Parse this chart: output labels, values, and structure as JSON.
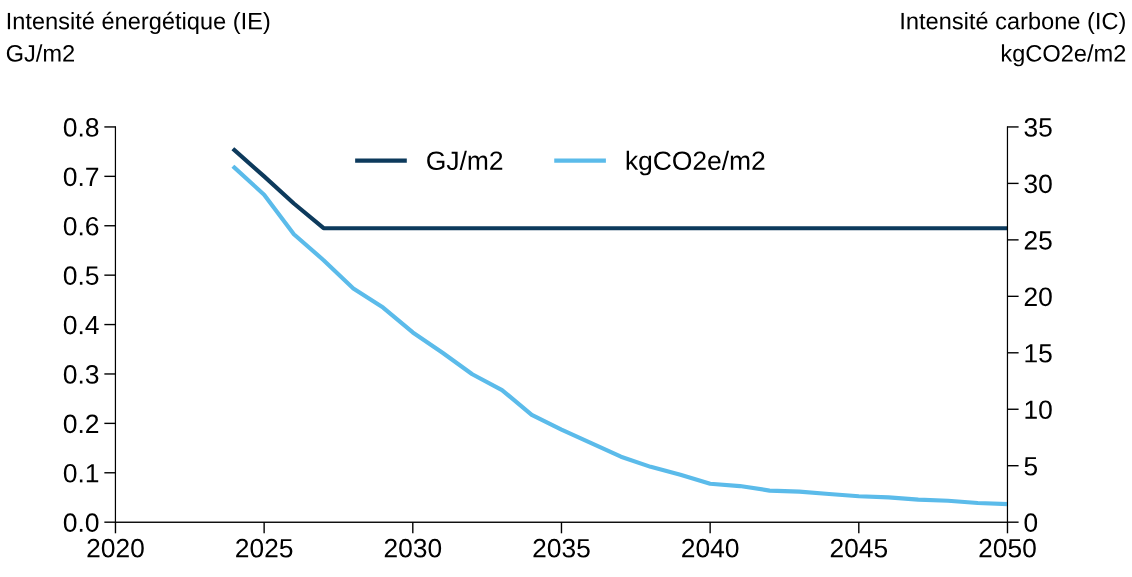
{
  "chart_data": {
    "type": "line",
    "ylabel": "Intensité énergétique (IE)\nGJ/m2",
    "y2label": "Intensité carbone (IC)\nkgCO2e/m2",
    "x": [
      2024,
      2025,
      2026,
      2027,
      2028,
      2029,
      2030,
      2031,
      2032,
      2033,
      2034,
      2035,
      2036,
      2037,
      2038,
      2039,
      2040,
      2041,
      2042,
      2043,
      2044,
      2045,
      2046,
      2047,
      2048,
      2049,
      2050
    ],
    "series": [
      {
        "name": "GJ/m2",
        "color": "#0d3a5c",
        "values": [
          0.753,
          0.7,
          0.645,
          0.595,
          0.595,
          0.595,
          0.595,
          0.595,
          0.595,
          0.595,
          0.595,
          0.595,
          0.595,
          0.595,
          0.595,
          0.595,
          0.595,
          0.595,
          0.595,
          0.595,
          0.595,
          0.595,
          0.595,
          0.595,
          0.595,
          0.595,
          0.595
        ]
      },
      {
        "name": "kgCO2e/m2",
        "color": "#5bbbea",
        "axis": "y2",
        "values": [
          31.4,
          29.0,
          25.5,
          23.2,
          20.7,
          19.0,
          16.8,
          15.0,
          13.1,
          11.7,
          9.5,
          8.2,
          7.0,
          5.8,
          4.9,
          4.2,
          3.4,
          3.2,
          2.8,
          2.7,
          2.5,
          2.3,
          2.2,
          2.0,
          1.9,
          1.7,
          1.6
        ]
      }
    ],
    "xlim": [
      2020,
      2050
    ],
    "xticks": [
      2020,
      2025,
      2030,
      2035,
      2040,
      2045,
      2050
    ],
    "ylim": [
      0,
      0.8
    ],
    "yticks": [
      {
        "value": 0,
        "label": "0.0"
      },
      0.1,
      0.2,
      0.3,
      0.4,
      0.5,
      0.6,
      0.7,
      0.8
    ],
    "y2lim": [
      0,
      35
    ],
    "y2ticks": [
      0,
      5,
      10,
      15,
      20,
      25,
      30,
      35
    ],
    "legend": "top",
    "grid": false,
    "marker": "none",
    "line_style": "solid"
  }
}
